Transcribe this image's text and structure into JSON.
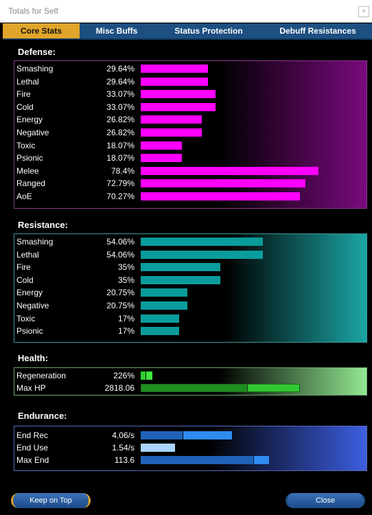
{
  "window": {
    "title": "Totals for Self",
    "close_glyph": "×"
  },
  "tabs": [
    {
      "label": "Core Stats",
      "active": true
    },
    {
      "label": "Misc Buffs",
      "active": false
    },
    {
      "label": "Status Protection",
      "active": false
    },
    {
      "label": "Debuff Resistances",
      "active": false
    }
  ],
  "defense": {
    "title": "Defense:",
    "bar_color": "#ff00ff",
    "rows": [
      {
        "name": "Smashing",
        "value": "29.64%",
        "pct": 29.64
      },
      {
        "name": "Lethal",
        "value": "29.64%",
        "pct": 29.64
      },
      {
        "name": "Fire",
        "value": "33.07%",
        "pct": 33.07
      },
      {
        "name": "Cold",
        "value": "33.07%",
        "pct": 33.07
      },
      {
        "name": "Energy",
        "value": "26.82%",
        "pct": 26.82
      },
      {
        "name": "Negative",
        "value": "26.82%",
        "pct": 26.82
      },
      {
        "name": "Toxic",
        "value": "18.07%",
        "pct": 18.07
      },
      {
        "name": "Psionic",
        "value": "18.07%",
        "pct": 18.07
      },
      {
        "name": "Melee",
        "value": "78.4%",
        "pct": 78.4
      },
      {
        "name": "Ranged",
        "value": "72.79%",
        "pct": 72.79
      },
      {
        "name": "AoE",
        "value": "70.27%",
        "pct": 70.27
      }
    ]
  },
  "resistance": {
    "title": "Resistance:",
    "bar_color": "#0a9c9c",
    "rows": [
      {
        "name": "Smashing",
        "value": "54.06%",
        "pct": 54.06
      },
      {
        "name": "Lethal",
        "value": "54.06%",
        "pct": 54.06
      },
      {
        "name": "Fire",
        "value": "35%",
        "pct": 35
      },
      {
        "name": "Cold",
        "value": "35%",
        "pct": 35
      },
      {
        "name": "Energy",
        "value": "20.75%",
        "pct": 20.75
      },
      {
        "name": "Negative",
        "value": "20.75%",
        "pct": 20.75
      },
      {
        "name": "Toxic",
        "value": "17%",
        "pct": 17
      },
      {
        "name": "Psionic",
        "value": "17%",
        "pct": 17
      }
    ]
  },
  "health": {
    "title": "Health:",
    "rows": [
      {
        "name": "Regeneration",
        "value": "226%"
      },
      {
        "name": "Max HP",
        "value": "2818.06"
      }
    ]
  },
  "endurance": {
    "title": "Endurance:",
    "rows": [
      {
        "name": "End Rec",
        "value": "4.06/s"
      },
      {
        "name": "End Use",
        "value": "1.54/s"
      },
      {
        "name": "Max End",
        "value": "113.6"
      }
    ]
  },
  "buttons": {
    "keep_on_top": "Keep on Top",
    "close": "Close"
  }
}
